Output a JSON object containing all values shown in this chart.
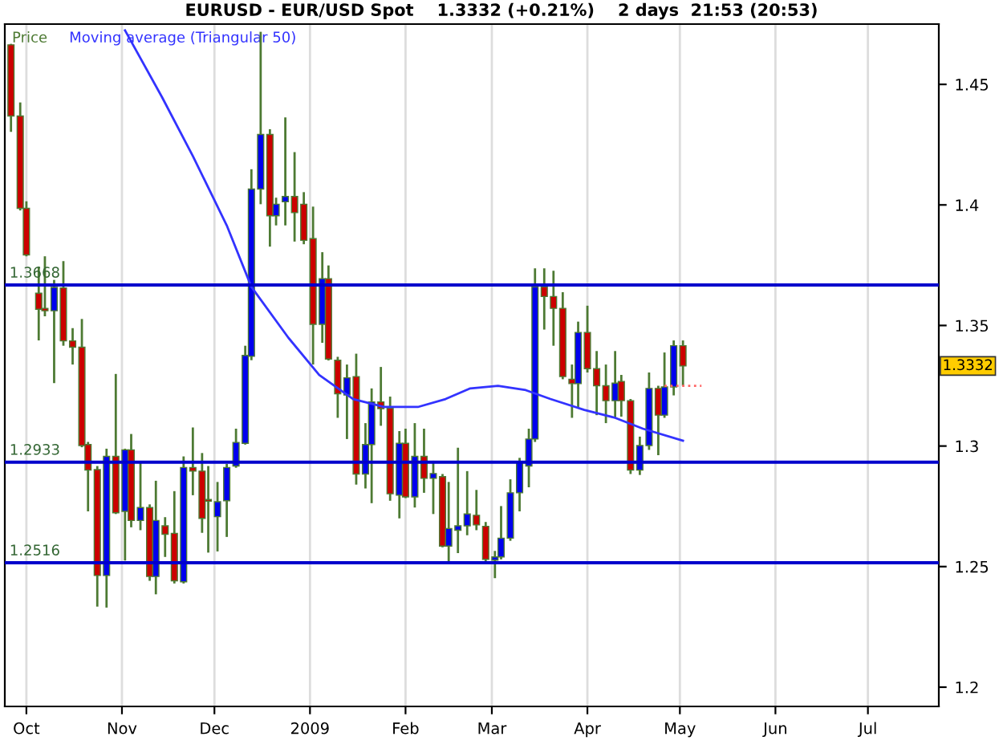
{
  "chart_data": {
    "type": "candlestick",
    "title": "EURUSD - EUR/USD Spot    1.3332 (+0.21%)    2 days  21:53 (20:53)",
    "xlim": [
      "2008-09-24",
      "2009-07-24"
    ],
    "xticks": [
      {
        "value": "2008-10-01",
        "label": "Oct"
      },
      {
        "value": "2008-11-01",
        "label": "Nov"
      },
      {
        "value": "2008-12-01",
        "label": "Dec"
      },
      {
        "value": "2009-01-01",
        "label": "2009"
      },
      {
        "value": "2009-02-01",
        "label": "Feb"
      },
      {
        "value": "2009-03-01",
        "label": "Mar"
      },
      {
        "value": "2009-04-01",
        "label": "Apr"
      },
      {
        "value": "2009-05-01",
        "label": "May"
      },
      {
        "value": "2009-06-01",
        "label": "Jun"
      },
      {
        "value": "2009-07-01",
        "label": "Jul"
      }
    ],
    "ylim": [
      1.192,
      1.475
    ],
    "yticks": [
      1.2,
      1.25,
      {
        "value": 1.3,
        "label": "1.3"
      },
      1.35,
      {
        "value": 1.4,
        "label": "1.4"
      },
      1.45
    ],
    "grid": "x",
    "legend": "top left",
    "ref_lines": [
      {
        "axis": "y",
        "value": 1.3668,
        "label": "1.3668",
        "color": "#0000cc"
      },
      {
        "axis": "y",
        "value": 1.2933,
        "label": "1.2933",
        "color": "#0000cc"
      },
      {
        "axis": "y",
        "value": 1.2516,
        "label": "1.2516",
        "color": "#0000cc"
      }
    ],
    "annotations": [
      "1.3332"
    ],
    "series": [
      {
        "name": "Price",
        "color": "#4d7a33",
        "x": [
          "2008-09-26",
          "2008-09-29",
          "2008-10-01",
          "2008-10-05",
          "2008-10-07",
          "2008-10-10",
          "2008-10-13",
          "2008-10-16",
          "2008-10-19",
          "2008-10-21",
          "2008-10-24",
          "2008-10-27",
          "2008-10-30",
          "2008-11-02",
          "2008-11-04",
          "2008-11-07",
          "2008-11-10",
          "2008-11-12",
          "2008-11-15",
          "2008-11-18",
          "2008-11-21",
          "2008-11-24",
          "2008-11-27",
          "2008-11-29",
          "2008-12-02",
          "2008-12-05",
          "2008-12-08",
          "2008-12-11",
          "2008-12-13",
          "2008-12-16",
          "2008-12-19",
          "2008-12-21",
          "2008-12-24",
          "2008-12-27",
          "2008-12-30",
          "2009-01-02",
          "2009-01-05",
          "2009-01-07",
          "2009-01-10",
          "2009-01-13",
          "2009-01-16",
          "2009-01-19",
          "2009-01-21",
          "2009-01-24",
          "2009-01-27",
          "2009-01-30",
          "2009-02-01",
          "2009-02-04",
          "2009-02-07",
          "2009-02-10",
          "2009-02-13",
          "2009-02-15",
          "2009-02-18",
          "2009-02-21",
          "2009-02-24",
          "2009-02-27",
          "2009-03-02",
          "2009-03-04",
          "2009-03-07",
          "2009-03-10",
          "2009-03-13",
          "2009-03-15",
          "2009-03-18",
          "2009-03-21",
          "2009-03-24",
          "2009-03-27",
          "2009-03-29",
          "2009-04-01",
          "2009-04-04",
          "2009-04-07",
          "2009-04-10",
          "2009-04-12",
          "2009-04-15",
          "2009-04-18",
          "2009-04-21",
          "2009-04-24",
          "2009-04-26",
          "2009-04-29",
          "2009-05-02"
        ],
        "ohlc": [
          [
            1.4664,
            1.4668,
            1.4303,
            1.4369
          ],
          [
            1.4369,
            1.4425,
            1.3977,
            1.3986
          ],
          [
            1.3986,
            1.4015,
            1.3787,
            1.3793
          ],
          [
            1.3634,
            1.3744,
            1.3438,
            1.3567
          ],
          [
            1.3571,
            1.3787,
            1.3538,
            1.3561
          ],
          [
            1.3561,
            1.3689,
            1.3261,
            1.3658
          ],
          [
            1.3656,
            1.3767,
            1.3416,
            1.3436
          ],
          [
            1.3436,
            1.3489,
            1.3338,
            1.341
          ],
          [
            1.341,
            1.3527,
            1.2995,
            1.3002
          ],
          [
            1.3006,
            1.3017,
            1.2729,
            1.29
          ],
          [
            1.2902,
            1.2917,
            1.2334,
            1.2463
          ],
          [
            1.2463,
            1.2989,
            1.233,
            1.2957
          ],
          [
            1.2957,
            1.3299,
            1.2718,
            1.2723
          ],
          [
            1.2729,
            1.2989,
            1.2525,
            1.2984
          ],
          [
            1.2984,
            1.305,
            1.2663,
            1.2691
          ],
          [
            1.2691,
            1.2929,
            1.2651,
            1.2745
          ],
          [
            1.2745,
            1.2758,
            1.2441,
            1.2459
          ],
          [
            1.2459,
            1.2856,
            1.2385,
            1.2691
          ],
          [
            1.2669,
            1.2705,
            1.254,
            1.2634
          ],
          [
            1.2638,
            1.2813,
            1.243,
            1.2441
          ],
          [
            1.2437,
            1.2957,
            1.243,
            1.2911
          ],
          [
            1.2911,
            1.3077,
            1.2796,
            1.2896
          ],
          [
            1.2896,
            1.2971,
            1.264,
            1.27
          ],
          [
            1.2778,
            1.2917,
            1.2558,
            1.2771
          ],
          [
            1.2707,
            1.2851,
            1.2563,
            1.2769
          ],
          [
            1.2773,
            1.2926,
            1.2623,
            1.2911
          ],
          [
            1.2917,
            1.3072,
            1.291,
            1.3015
          ],
          [
            1.3011,
            1.3416,
            1.3006,
            1.3376
          ],
          [
            1.3372,
            1.4148,
            1.3356,
            1.4066
          ],
          [
            1.4066,
            1.4718,
            1.4003,
            1.4292
          ],
          [
            1.4292,
            1.4314,
            1.3827,
            1.3955
          ],
          [
            1.3955,
            1.403,
            1.3915,
            1.4003
          ],
          [
            1.4013,
            1.4363,
            1.3915,
            1.4035
          ],
          [
            1.4035,
            1.4219,
            1.3848,
            1.3968
          ],
          [
            1.4003,
            1.4053,
            1.3837,
            1.3853
          ],
          [
            1.386,
            1.3993,
            1.3338,
            1.3505
          ],
          [
            1.3505,
            1.3804,
            1.3428,
            1.3694
          ],
          [
            1.3694,
            1.3749,
            1.3355,
            1.3361
          ],
          [
            1.3356,
            1.337,
            1.3117,
            1.3217
          ],
          [
            1.3212,
            1.3338,
            1.3029,
            1.3283
          ],
          [
            1.3288,
            1.3383,
            1.284,
            1.2884
          ],
          [
            1.2884,
            1.3095,
            1.2824,
            1.3006
          ],
          [
            1.3006,
            1.3239,
            1.2763,
            1.3183
          ],
          [
            1.3183,
            1.3328,
            1.3084,
            1.3155
          ],
          [
            1.3157,
            1.3205,
            1.2773,
            1.2802
          ],
          [
            1.2796,
            1.3062,
            1.27,
            1.3011
          ],
          [
            1.3011,
            1.3072,
            1.2784,
            1.2789
          ],
          [
            1.2789,
            1.3095,
            1.2745,
            1.2957
          ],
          [
            1.2957,
            1.3072,
            1.2806,
            1.2866
          ],
          [
            1.2866,
            1.2939,
            1.2718,
            1.2886
          ],
          [
            1.2873,
            1.2884,
            1.258,
            1.2585
          ],
          [
            1.2585,
            1.2851,
            1.2518,
            1.2658
          ],
          [
            1.2651,
            1.2993,
            1.2556,
            1.2669
          ],
          [
            1.2669,
            1.2896,
            1.263,
            1.2718
          ],
          [
            1.2713,
            1.2818,
            1.2651,
            1.2673
          ],
          [
            1.2667,
            1.2685,
            1.2518,
            1.253
          ],
          [
            1.2527,
            1.2565,
            1.2452,
            1.254
          ],
          [
            1.254,
            1.2751,
            1.253,
            1.2618
          ],
          [
            1.2618,
            1.2862,
            1.2607,
            1.2806
          ],
          [
            1.2806,
            1.2951,
            1.2729,
            1.2935
          ],
          [
            1.2917,
            1.3072,
            1.2829,
            1.3029
          ],
          [
            1.3029,
            1.3737,
            1.3017,
            1.366
          ],
          [
            1.366,
            1.3737,
            1.3483,
            1.362
          ],
          [
            1.362,
            1.3727,
            1.3416,
            1.3571
          ],
          [
            1.3571,
            1.3638,
            1.3277,
            1.3288
          ],
          [
            1.3277,
            1.3338,
            1.3117,
            1.3259
          ],
          [
            1.3259,
            1.3516,
            1.3162,
            1.3471
          ],
          [
            1.3471,
            1.3582,
            1.3305,
            1.3321
          ],
          [
            1.3321,
            1.3394,
            1.3128,
            1.325
          ],
          [
            1.325,
            1.3338,
            1.3095,
            1.3188
          ],
          [
            1.3188,
            1.3394,
            1.3117,
            1.3261
          ],
          [
            1.3268,
            1.3295,
            1.3122,
            1.3188
          ],
          [
            1.3188,
            1.3195,
            1.2884,
            1.29
          ],
          [
            1.29,
            1.3039,
            1.288,
            1.3002
          ],
          [
            1.3002,
            1.3305,
            1.2984,
            1.3239
          ],
          [
            1.3239,
            1.325,
            1.2962,
            1.3128
          ],
          [
            1.3128,
            1.3388,
            1.3117,
            1.3245
          ],
          [
            1.3245,
            1.3438,
            1.321,
            1.3416
          ],
          [
            1.3416,
            1.3438,
            1.325,
            1.3332
          ]
        ],
        "colors": [
          "#cc0000",
          "#cc0000",
          "#cc0000",
          "#cc0000",
          "#cc0000",
          "#0000ee",
          "#cc0000",
          "#cc0000",
          "#cc0000",
          "#cc0000",
          "#cc0000",
          "#0000ee",
          "#cc0000",
          "#0000ee",
          "#cc0000",
          "#0000ee",
          "#cc0000",
          "#0000ee",
          "#cc0000",
          "#cc0000",
          "#0000ee",
          "#cc0000",
          "#cc0000",
          "#cc0000",
          "#0000ee",
          "#0000ee",
          "#0000ee",
          "#0000ee",
          "#0000ee",
          "#0000ee",
          "#cc0000",
          "#0000ee",
          "#0000ee",
          "#cc0000",
          "#cc0000",
          "#cc0000",
          "#0000ee",
          "#cc0000",
          "#cc0000",
          "#0000ee",
          "#cc0000",
          "#0000ee",
          "#0000ee",
          "#cc0000",
          "#cc0000",
          "#0000ee",
          "#cc0000",
          "#0000ee",
          "#cc0000",
          "#0000ee",
          "#cc0000",
          "#0000ee",
          "#0000ee",
          "#0000ee",
          "#cc0000",
          "#cc0000",
          "#0000ee",
          "#0000ee",
          "#0000ee",
          "#0000ee",
          "#0000ee",
          "#0000ee",
          "#cc0000",
          "#cc0000",
          "#cc0000",
          "#cc0000",
          "#0000ee",
          "#cc0000",
          "#cc0000",
          "#cc0000",
          "#0000ee",
          "#cc0000",
          "#cc0000",
          "#0000ee",
          "#0000ee",
          "#cc0000",
          "#0000ee",
          "#0000ee",
          "#cc0000"
        ]
      },
      {
        "name": "Moving average (Triangular 50)",
        "type": "line",
        "color": "#3333ff",
        "x": [
          "2008-11-02",
          "2008-11-14",
          "2008-11-24",
          "2008-12-05",
          "2008-12-13",
          "2008-12-25",
          "2009-01-04",
          "2009-01-15",
          "2009-01-25",
          "2009-02-05",
          "2009-02-14",
          "2009-02-22",
          "2009-03-03",
          "2009-03-12",
          "2009-03-20",
          "2009-03-31",
          "2009-04-10",
          "2009-04-19",
          "2009-05-02"
        ],
        "values": [
          1.4724,
          1.4447,
          1.4203,
          1.3915,
          1.366,
          1.3449,
          1.3295,
          1.3195,
          1.3162,
          1.3162,
          1.3195,
          1.3239,
          1.325,
          1.3232,
          1.3195,
          1.315,
          1.3117,
          1.3072,
          1.3022
        ]
      },
      {
        "type": "line",
        "color": "#ff6666",
        "line_style": "dotted",
        "x": [
          "2009-04-26",
          "2009-05-08"
        ],
        "values": [
          1.325,
          1.325
        ]
      }
    ]
  }
}
